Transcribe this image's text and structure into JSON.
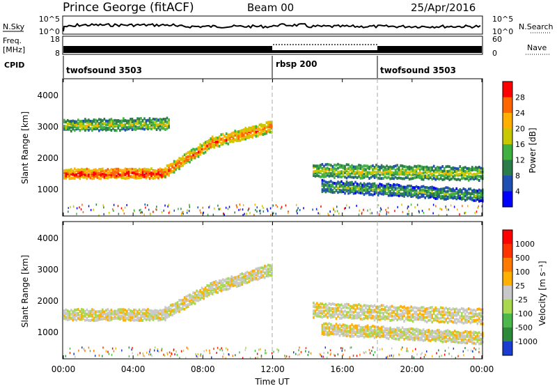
{
  "header": {
    "station": "Prince George (fitACF)",
    "beam": "Beam 00",
    "date": "25/Apr/2016"
  },
  "top_panels": {
    "nsky_label": "N.Sky",
    "nsky_ticks": [
      "10^5",
      "10^0"
    ],
    "nsearch_label": "N.Search",
    "freq_label_1": "Freq.",
    "freq_label_2": "[MHz]",
    "freq_ticks": [
      "18",
      "8"
    ],
    "nave_ticks": [
      "60",
      "0"
    ],
    "nave_label": "Nave",
    "cpid_label": "CPID",
    "cpid_segments": [
      {
        "label": "twofsound 3503",
        "start": 0
      },
      {
        "label": "rbsp 200",
        "start": 12
      },
      {
        "label": "twofsound 3503",
        "start": 18
      }
    ]
  },
  "chart_data": [
    {
      "type": "heatmap",
      "title": "",
      "xlabel": "",
      "ylabel": "Slant Range [km]",
      "xlim": [
        0,
        24
      ],
      "ylim": [
        200,
        4600
      ],
      "y_ticks": [
        "4000",
        "3000",
        "2000",
        "1000"
      ],
      "colorbar_label": "Power [dB]",
      "colorbar_ticks": [
        "28",
        "24",
        "20",
        "16",
        "12",
        "8",
        "4"
      ],
      "colors": [
        "#0000ff",
        "#1f4fb0",
        "#2a7d4a",
        "#40b040",
        "#c8c800",
        "#ffb000",
        "#ff6600",
        "#ff0000"
      ],
      "bands": [
        {
          "t0": 0,
          "t1": 5.8,
          "r0": 1600,
          "r1": 1600,
          "w": 120,
          "level": 7
        },
        {
          "t0": 5.8,
          "t1": 8.5,
          "r0": 1650,
          "r1": 2600,
          "w": 140,
          "level": 6
        },
        {
          "t0": 8.5,
          "t1": 11.9,
          "r0": 2600,
          "r1": 3100,
          "w": 140,
          "level": 6
        },
        {
          "t0": 0,
          "t1": 6,
          "r0": 3150,
          "r1": 3200,
          "w": 150,
          "level": 4
        },
        {
          "t0": 14.3,
          "t1": 24,
          "r0": 1700,
          "r1": 1600,
          "w": 180,
          "level": 4
        },
        {
          "t0": 14.8,
          "t1": 24,
          "r0": 1200,
          "r1": 900,
          "w": 150,
          "level": 3
        }
      ]
    },
    {
      "type": "heatmap",
      "title": "",
      "xlabel": "Time UT",
      "ylabel": "Slant Range [km]",
      "xlim": [
        0,
        24
      ],
      "ylim": [
        200,
        4600
      ],
      "x_ticks": [
        "00:00",
        "04:00",
        "08:00",
        "12:00",
        "16:00",
        "20:00",
        "00:00"
      ],
      "y_ticks": [
        "4000",
        "3000",
        "2000",
        "1000"
      ],
      "colorbar_label": "Velocity [m s⁻¹]",
      "colorbar_ticks": [
        "1000",
        "500",
        "100",
        "25",
        "-25",
        "-100",
        "-500",
        "-1000"
      ],
      "colors": [
        "#1a3ccf",
        "#2d8a3a",
        "#4cb84c",
        "#a8d850",
        "#c8c8c8",
        "#ffb000",
        "#ff7a00",
        "#ff3300",
        "#ff0000"
      ],
      "bands": [
        {
          "t0": 0,
          "t1": 5.8,
          "r0": 1650,
          "r1": 1650,
          "w": 140,
          "level": 4
        },
        {
          "t0": 5.8,
          "t1": 8.5,
          "r0": 1700,
          "r1": 2500,
          "w": 150,
          "level": 4
        },
        {
          "t0": 8.5,
          "t1": 11.9,
          "r0": 2500,
          "r1": 3100,
          "w": 150,
          "level": 4
        },
        {
          "t0": 14.3,
          "t1": 24,
          "r0": 1800,
          "r1": 1600,
          "w": 200,
          "level": 4
        },
        {
          "t0": 14.8,
          "t1": 24,
          "r0": 1200,
          "r1": 900,
          "w": 150,
          "level": 4
        }
      ]
    }
  ]
}
